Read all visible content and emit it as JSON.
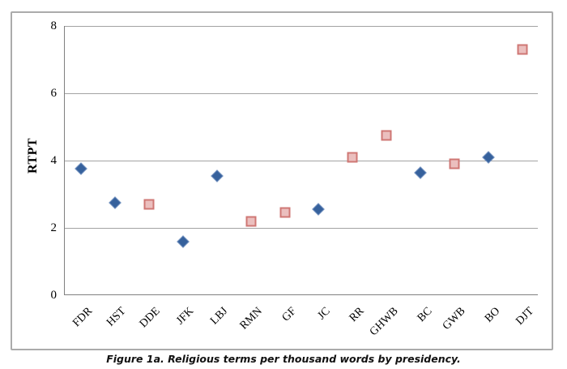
{
  "figure": {
    "caption": "Figure 1a. Religious terms per thousand words by presidency."
  },
  "chart_data": {
    "type": "scatter",
    "title": "",
    "xlabel": "",
    "ylabel": "RTPT",
    "categories": [
      "FDR",
      "HST",
      "DDE",
      "JFK",
      "LBJ",
      "RMN",
      "GF",
      "JC",
      "RR",
      "GHWB",
      "BC",
      "GWB",
      "BO",
      "DJT"
    ],
    "ylim": [
      0,
      8
    ],
    "yticks": [
      0,
      2,
      4,
      6,
      8
    ],
    "grid": "horizontal",
    "legend_position": "none",
    "series": [
      {
        "name": "blue-diamond",
        "marker": "diamond",
        "color": "#36619c",
        "values": [
          3.75,
          2.75,
          null,
          1.6,
          3.55,
          null,
          null,
          2.55,
          null,
          null,
          3.65,
          null,
          4.1,
          null
        ]
      },
      {
        "name": "pink-square",
        "marker": "square",
        "fill": "#ebbfbe",
        "border": "#c0504d",
        "values": [
          null,
          null,
          2.7,
          null,
          null,
          2.2,
          2.45,
          null,
          4.1,
          4.75,
          null,
          3.9,
          null,
          7.3
        ]
      }
    ],
    "colors": {
      "gridline": "#a3a3a3",
      "axis": "#808080",
      "frame": "#ababab",
      "text": "#000000"
    }
  }
}
